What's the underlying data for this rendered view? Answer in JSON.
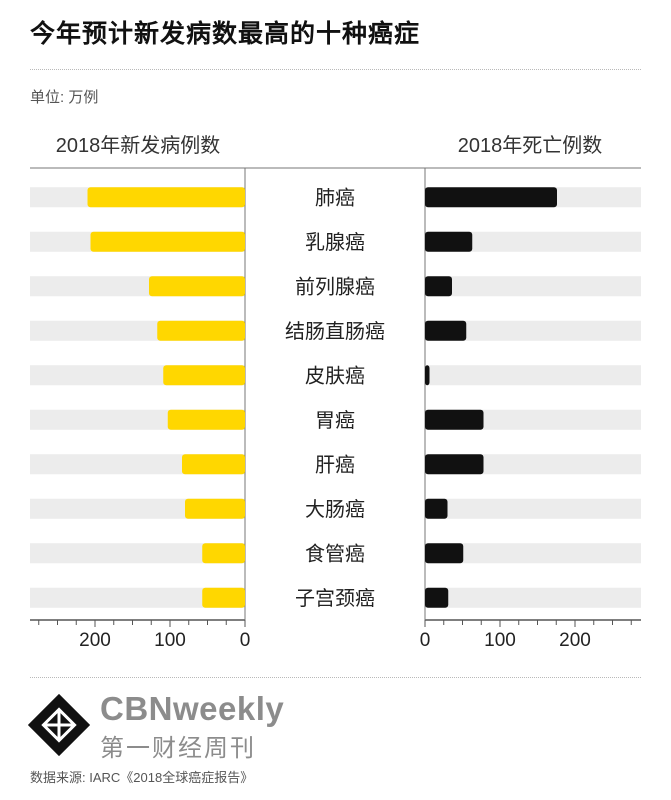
{
  "title": "今年预计新发病数最高的十种癌症",
  "unit": "单位: 万例",
  "brand": {
    "name_en": "CBNweekly",
    "name_cn": "第一财经周刊"
  },
  "source": "数据来源: IARC《2018全球癌症报告》",
  "colors": {
    "new_cases": "#ffd700",
    "deaths": "#111111",
    "row_band": "#ececec",
    "axis": "#555555"
  },
  "chart_data": {
    "type": "bar",
    "categories": [
      "肺癌",
      "乳腺癌",
      "前列腺癌",
      "结肠直肠癌",
      "皮肤癌",
      "胃癌",
      "肝癌",
      "大肠癌",
      "食管癌",
      "子宫颈癌"
    ],
    "series": [
      {
        "name": "2018年新发病例数",
        "values": [
          210,
          206,
          128,
          117,
          109,
          103,
          84,
          80,
          57,
          57
        ],
        "xlim": [
          300,
          0
        ],
        "ticks": [
          200,
          100,
          0
        ],
        "color": "#ffd700"
      },
      {
        "name": "2018年死亡例数",
        "values": [
          176,
          63,
          36,
          55,
          6,
          78,
          78,
          30,
          51,
          31
        ],
        "xlim": [
          0,
          300
        ],
        "ticks": [
          0,
          100,
          200
        ],
        "color": "#111111"
      }
    ],
    "layout": "butterfly",
    "grid": false,
    "legend": "column headers"
  }
}
